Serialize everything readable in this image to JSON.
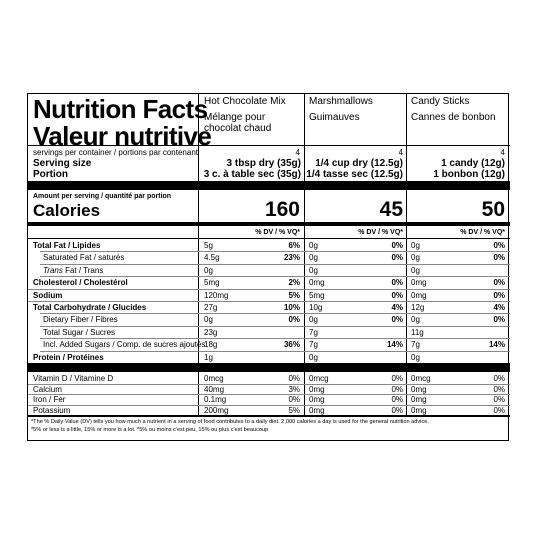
{
  "title_en": "Nutrition Facts",
  "title_fr": "Valeur nutritive",
  "servings_label": "servings per container / portions par contenant",
  "serving_size_label": "Serving size",
  "portion_label": "Portion",
  "amount_label": "Amount per serving / quantité par portion",
  "calories_label": "Calories",
  "dv_header": "% DV / % VQ*",
  "nutrients": [
    {
      "label": "Total Fat / Lipides",
      "bold": true
    },
    {
      "label": "Saturated Fat / saturés",
      "indent": true
    },
    {
      "label_italic": "Trans",
      "label": "Fat / Trans",
      "indent": true
    },
    {
      "label": "Cholesterol / Cholestérol",
      "bold": true
    },
    {
      "label": "Sodium",
      "bold": true
    },
    {
      "label": "Total Carbohydrate / Glucides",
      "bold": true
    },
    {
      "label": "Dietary Fiber / Fibres",
      "indent": true
    },
    {
      "label": "Total Sugar / Sucres",
      "indent": true
    },
    {
      "label": "Incl. Added Sugars / Comp. de sucres ajoutés",
      "indent": true
    },
    {
      "label": "Protein / Protéines",
      "bold": true
    }
  ],
  "vitamins": [
    {
      "label": "Vitamin D / Vitamine D"
    },
    {
      "label": "Calcium"
    },
    {
      "label": "Iron / Fer"
    },
    {
      "label": "Potassium"
    }
  ],
  "products": [
    {
      "name_en": "Hot Chocolate Mix",
      "name_fr": "Mélange pour chocolat chaud",
      "servings": "4",
      "serving_size": "3 tbsp dry (35g)",
      "portion": "3 c. à table sec (35g)",
      "calories": "160",
      "nutrients": [
        {
          "amount": "5g",
          "dv": "6%"
        },
        {
          "amount": "4.5g",
          "dv": "23%"
        },
        {
          "amount": "0g",
          "dv": ""
        },
        {
          "amount": "5mg",
          "dv": "2%"
        },
        {
          "amount": "120mg",
          "dv": "5%"
        },
        {
          "amount": "27g",
          "dv": "10%"
        },
        {
          "amount": "0g",
          "dv": "0%"
        },
        {
          "amount": "23g",
          "dv": ""
        },
        {
          "amount": "18g",
          "dv": "36%"
        },
        {
          "amount": "1g",
          "dv": ""
        }
      ],
      "vitamins": [
        {
          "amount": "0mcg",
          "dv": "0%"
        },
        {
          "amount": "40mg",
          "dv": "3%"
        },
        {
          "amount": "0.1mg",
          "dv": "0%"
        },
        {
          "amount": "200mg",
          "dv": "5%"
        }
      ]
    },
    {
      "name_en": "Marshmallows",
      "name_fr": "Guimauves",
      "servings": "4",
      "serving_size": "1/4 cup dry (12.5g)",
      "portion": "1/4 tasse sec (12.5g)",
      "calories": "45",
      "nutrients": [
        {
          "amount": "0g",
          "dv": "0%"
        },
        {
          "amount": "0g",
          "dv": "0%"
        },
        {
          "amount": "0g",
          "dv": ""
        },
        {
          "amount": "0mg",
          "dv": "0%"
        },
        {
          "amount": "5mg",
          "dv": "0%"
        },
        {
          "amount": "10g",
          "dv": "4%"
        },
        {
          "amount": "0g",
          "dv": "0%"
        },
        {
          "amount": "7g",
          "dv": ""
        },
        {
          "amount": "7g",
          "dv": "14%"
        },
        {
          "amount": "0g",
          "dv": ""
        }
      ],
      "vitamins": [
        {
          "amount": "0mcg",
          "dv": "0%"
        },
        {
          "amount": "0mg",
          "dv": "0%"
        },
        {
          "amount": "0mg",
          "dv": "0%"
        },
        {
          "amount": "0mg",
          "dv": "0%"
        }
      ]
    },
    {
      "name_en": "Candy Sticks",
      "name_fr": "Cannes de bonbon",
      "servings": "4",
      "serving_size": "1 candy (12g)",
      "portion": "1 bonbon (12g)",
      "calories": "50",
      "nutrients": [
        {
          "amount": "0g",
          "dv": "0%"
        },
        {
          "amount": "0g",
          "dv": "0%"
        },
        {
          "amount": "0g",
          "dv": ""
        },
        {
          "amount": "0mg",
          "dv": "0%"
        },
        {
          "amount": "0mg",
          "dv": "0%"
        },
        {
          "amount": "12g",
          "dv": "4%"
        },
        {
          "amount": "0g",
          "dv": "0%"
        },
        {
          "amount": "11g",
          "dv": ""
        },
        {
          "amount": "7g",
          "dv": "14%"
        },
        {
          "amount": "0g",
          "dv": ""
        }
      ],
      "vitamins": [
        {
          "amount": "0mcg",
          "dv": "0%"
        },
        {
          "amount": "0mg",
          "dv": "0%"
        },
        {
          "amount": "0mg",
          "dv": "0%"
        },
        {
          "amount": "0mg",
          "dv": "0%"
        }
      ]
    }
  ],
  "footnote_1": "*The % Daily Value (DV) tells you how much a nutrient in a serving of food contributes to a daily diet. 2,000 calories a day is used for the general nutrition advice.",
  "footnote_2": "*5% or less is a little, 15% or more is a lot. *5% ou moins c'est peu, 15% ou plus c'est beaucoup"
}
